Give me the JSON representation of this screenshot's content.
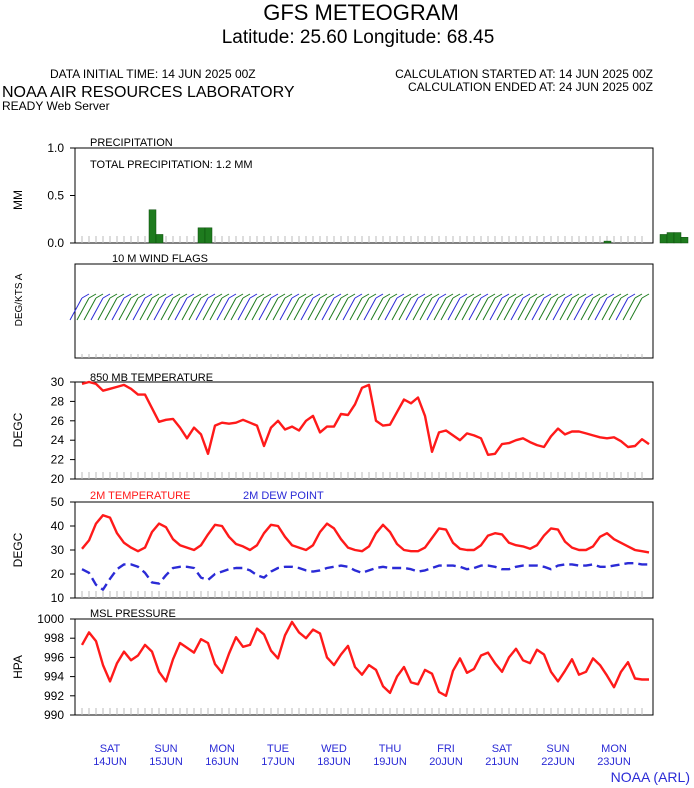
{
  "header": {
    "title": "GFS METEOGRAM",
    "location": "Latitude: 25.60 Longitude:  68.45",
    "initial_time": "DATA INITIAL TIME: 14 JUN 2025 00Z",
    "calc_started": "CALCULATION STARTED AT: 14 JUN 2025 00Z",
    "calc_ended": "CALCULATION ENDED AT: 24 JUN 2025 00Z",
    "org": "NOAA AIR RESOURCES LABORATORY",
    "server": "READY Web Server",
    "footer": "NOAA (ARL)"
  },
  "colors": {
    "red": "#ff1a1a",
    "blue": "#2b2bd6",
    "green": "#1e7b1e",
    "axis": "#000000",
    "tick": "#bbbbbb"
  },
  "day_labels": [
    {
      "dow": "SAT",
      "date": "14JUN"
    },
    {
      "dow": "SUN",
      "date": "15JUN"
    },
    {
      "dow": "MON",
      "date": "16JUN"
    },
    {
      "dow": "TUE",
      "date": "17JUN"
    },
    {
      "dow": "WED",
      "date": "18JUN"
    },
    {
      "dow": "THU",
      "date": "19JUN"
    },
    {
      "dow": "FRI",
      "date": "20JUN"
    },
    {
      "dow": "SAT",
      "date": "21JUN"
    },
    {
      "dow": "SUN",
      "date": "22JUN"
    },
    {
      "dow": "MON",
      "date": "23JUN"
    }
  ],
  "chart_data": [
    {
      "type": "bar",
      "title": "PRECIPITATION",
      "annotation": "TOTAL PRECIPITATION:   1.2 MM",
      "ylabel": "MM",
      "ylim": [
        0,
        1.0
      ],
      "yticks": [
        "0.0",
        "0.5",
        "1.0"
      ],
      "x_hours": [
        30,
        33,
        51,
        54,
        225,
        249,
        252,
        255,
        258
      ],
      "values": [
        0.35,
        0.09,
        0.16,
        0.16,
        0.02,
        0.09,
        0.11,
        0.11,
        0.06
      ],
      "grid": false
    },
    {
      "type": "wind_flags",
      "title": "10 M  WIND FLAGS",
      "ylabel": "DEG/KTS  A"
    },
    {
      "type": "line",
      "title": "850 MB  TEMPERATURE",
      "ylabel": "DEGC",
      "ylim": [
        20,
        30
      ],
      "yticks": [
        "20",
        "22",
        "24",
        "26",
        "28",
        "30"
      ],
      "series": [
        {
          "values": [
            29.8,
            30.0,
            29.8,
            29.1,
            29.3,
            29.5,
            29.7,
            29.3,
            28.7,
            28.7,
            27.3,
            25.9,
            26.1,
            26.2,
            25.3,
            24.2,
            25.3,
            24.6,
            22.6,
            25.5,
            25.8,
            25.7,
            25.8,
            26.1,
            25.8,
            25.5,
            23.4,
            25.3,
            26.0,
            25.1,
            25.4,
            25.0,
            26.0,
            26.5,
            24.8,
            25.4,
            25.4,
            26.7,
            26.6,
            27.7,
            29.4,
            29.7,
            26.0,
            25.5,
            25.6,
            26.9,
            28.2,
            27.8,
            28.4,
            26.5,
            22.8,
            24.8,
            25.0,
            24.5,
            24.0,
            24.7,
            24.5,
            24.2,
            22.5,
            22.6,
            23.6,
            23.7,
            24.0,
            24.2,
            23.8,
            23.5,
            23.3,
            24.4,
            25.2,
            24.6,
            24.9,
            24.9,
            24.7,
            24.5,
            24.3,
            24.2,
            24.3,
            23.9,
            23.3,
            23.4,
            24.1,
            23.6
          ]
        }
      ]
    },
    {
      "type": "line",
      "ylabel": "DEGC",
      "ylim": [
        10,
        50
      ],
      "yticks": [
        "10",
        "20",
        "30",
        "40",
        "50"
      ],
      "legend": [
        "2M TEMPERATURE",
        "2M  DEW POINT"
      ],
      "series": [
        {
          "name": "2M TEMPERATURE",
          "values": [
            30.5,
            34.0,
            41.0,
            44.5,
            43.5,
            37.0,
            33.0,
            31.0,
            29.5,
            31.0,
            37.5,
            41.0,
            39.5,
            34.5,
            32.0,
            31.0,
            30.0,
            32.0,
            36.5,
            40.5,
            40.0,
            35.5,
            32.5,
            31.5,
            30.0,
            32.0,
            37.0,
            40.5,
            40.0,
            35.5,
            32.0,
            31.0,
            30.0,
            32.0,
            37.5,
            41.0,
            39.0,
            34.5,
            31.0,
            30.0,
            29.5,
            31.5,
            37.0,
            40.5,
            37.5,
            32.5,
            30.0,
            29.5,
            29.5,
            31.0,
            35.0,
            39.0,
            38.5,
            33.0,
            30.5,
            30.0,
            30.0,
            32.0,
            36.0,
            37.0,
            36.5,
            33.0,
            32.0,
            31.5,
            30.5,
            32.0,
            36.0,
            39.0,
            38.5,
            33.5,
            31.0,
            30.0,
            30.0,
            31.5,
            35.5,
            37.0,
            34.5,
            33.0,
            31.5,
            30.0,
            29.5,
            29.0
          ]
        },
        {
          "name": "2M  DEW POINT",
          "values": [
            22.0,
            20.5,
            15.5,
            13.5,
            18.0,
            22.0,
            24.0,
            24.0,
            23.0,
            20.5,
            16.5,
            16.0,
            19.5,
            22.5,
            23.0,
            23.0,
            22.5,
            18.5,
            17.5,
            20.0,
            21.0,
            22.0,
            22.5,
            22.5,
            21.5,
            19.5,
            18.5,
            21.0,
            22.5,
            23.0,
            23.0,
            22.5,
            21.5,
            21.0,
            21.5,
            22.5,
            23.0,
            23.5,
            23.0,
            21.5,
            20.5,
            21.5,
            22.5,
            23.0,
            22.5,
            22.5,
            22.5,
            22.0,
            21.0,
            21.5,
            22.5,
            23.5,
            23.5,
            23.5,
            23.0,
            22.0,
            22.5,
            23.5,
            23.5,
            23.0,
            22.0,
            22.0,
            23.0,
            23.5,
            23.5,
            23.5,
            23.0,
            22.0,
            23.5,
            24.0,
            24.0,
            23.5,
            23.5,
            24.0,
            23.0,
            23.0,
            23.5,
            24.0,
            24.5,
            24.5,
            24.0,
            24.0
          ]
        }
      ]
    },
    {
      "type": "line",
      "title": "MSL PRESSURE",
      "ylabel": "HPA",
      "ylim": [
        990,
        1000
      ],
      "yticks": [
        "990",
        "992",
        "994",
        "996",
        "998",
        "1000"
      ],
      "series": [
        {
          "values": [
            997.3,
            998.6,
            997.7,
            995.2,
            993.5,
            995.4,
            996.6,
            995.7,
            996.2,
            997.3,
            996.6,
            994.5,
            993.5,
            995.8,
            997.5,
            997.0,
            996.5,
            997.9,
            997.5,
            995.3,
            994.4,
            996.4,
            998.1,
            997.1,
            997.3,
            999.0,
            998.4,
            996.7,
            995.9,
            998.3,
            999.7,
            998.6,
            998.0,
            998.9,
            998.5,
            996.0,
            995.2,
            996.3,
            997.2,
            995.0,
            994.2,
            995.2,
            994.7,
            993.0,
            992.3,
            994.0,
            995.0,
            993.4,
            993.2,
            994.7,
            994.3,
            992.4,
            992.0,
            994.6,
            995.9,
            994.4,
            994.8,
            996.2,
            996.5,
            995.4,
            994.5,
            996.0,
            996.9,
            995.7,
            995.4,
            996.8,
            996.3,
            994.5,
            993.5,
            994.6,
            995.8,
            994.2,
            994.5,
            995.9,
            995.2,
            994.1,
            992.9,
            994.5,
            995.5,
            993.8,
            993.7,
            993.7
          ]
        }
      ]
    }
  ]
}
